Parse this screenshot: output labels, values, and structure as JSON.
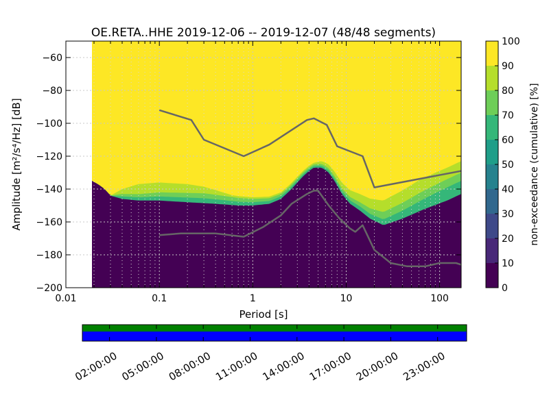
{
  "chart_data": {
    "type": "heatmap",
    "title": "OE.RETA..HHE   2019-12-06 -- 2019-12-07  (48/48 segments)",
    "xlabel": "Period [s]",
    "ylabel": "Amplitude [m²/s⁴/Hz] [dB]",
    "xscale": "log",
    "xlim": [
      0.01,
      170
    ],
    "ylim": [
      -200,
      -50
    ],
    "grid": true,
    "x_ticks": [
      {
        "value": 0.01,
        "label": "0.01"
      },
      {
        "value": 0.1,
        "label": "0.1"
      },
      {
        "value": 1,
        "label": "1"
      },
      {
        "value": 10,
        "label": "10"
      },
      {
        "value": 100,
        "label": "100"
      }
    ],
    "y_ticks": [
      {
        "value": -60,
        "label": "−60"
      },
      {
        "value": -80,
        "label": "−80"
      },
      {
        "value": -100,
        "label": "−100"
      },
      {
        "value": -120,
        "label": "−120"
      },
      {
        "value": -140,
        "label": "−140"
      },
      {
        "value": -160,
        "label": "−160"
      },
      {
        "value": -180,
        "label": "−180"
      },
      {
        "value": -200,
        "label": "−200"
      }
    ],
    "data_xmin": 0.019,
    "colorbar": {
      "label": "non-exceedance (cumulative) [%]",
      "range": [
        0,
        100
      ],
      "ticks": [
        {
          "value": 0,
          "label": "0"
        },
        {
          "value": 10,
          "label": "10"
        },
        {
          "value": 20,
          "label": "20"
        },
        {
          "value": 30,
          "label": "30"
        },
        {
          "value": 40,
          "label": "40"
        },
        {
          "value": 50,
          "label": "50"
        },
        {
          "value": 60,
          "label": "60"
        },
        {
          "value": 70,
          "label": "70"
        },
        {
          "value": 80,
          "label": "80"
        },
        {
          "value": 90,
          "label": "90"
        },
        {
          "value": 100,
          "label": "100"
        }
      ],
      "colors": [
        "#440154",
        "#482878",
        "#3e4989",
        "#31688e",
        "#26828e",
        "#1f9e89",
        "#35b779",
        "#6ece58",
        "#b5de2b",
        "#fde725"
      ]
    },
    "lower_boundary": [
      [
        0.019,
        -135
      ],
      [
        0.022,
        -137
      ],
      [
        0.026,
        -140
      ],
      [
        0.03,
        -144
      ],
      [
        0.04,
        -146
      ],
      [
        0.06,
        -147
      ],
      [
        0.1,
        -147
      ],
      [
        0.2,
        -148
      ],
      [
        0.4,
        -149
      ],
      [
        0.7,
        -150
      ],
      [
        1.0,
        -150
      ],
      [
        1.5,
        -149
      ],
      [
        2.0,
        -146
      ],
      [
        2.5,
        -141
      ],
      [
        3.0,
        -136
      ],
      [
        3.5,
        -132
      ],
      [
        4.0,
        -129
      ],
      [
        4.5,
        -127
      ],
      [
        5.5,
        -127
      ],
      [
        6.5,
        -130
      ],
      [
        7.5,
        -135
      ],
      [
        9.0,
        -143
      ],
      [
        11,
        -149
      ],
      [
        14,
        -153
      ],
      [
        18,
        -158
      ],
      [
        25,
        -162
      ],
      [
        40,
        -158
      ],
      [
        70,
        -152
      ],
      [
        120,
        -147
      ],
      [
        170,
        -143
      ]
    ],
    "transition_bands": [
      {
        "percent": 70,
        "offsets": [
          [
            0.019,
            0
          ],
          [
            0.03,
            0
          ],
          [
            0.04,
            1.5
          ],
          [
            0.1,
            2.5
          ],
          [
            0.3,
            3
          ],
          [
            1,
            2
          ],
          [
            2,
            1.5
          ],
          [
            4.5,
            1
          ],
          [
            8,
            1.5
          ],
          [
            14,
            2.5
          ],
          [
            25,
            3.5
          ],
          [
            60,
            6
          ],
          [
            120,
            8
          ],
          [
            170,
            8
          ]
        ]
      },
      {
        "percent": 80,
        "offsets": [
          [
            0.019,
            0
          ],
          [
            0.03,
            0
          ],
          [
            0.04,
            3
          ],
          [
            0.1,
            5
          ],
          [
            0.3,
            6
          ],
          [
            1,
            4
          ],
          [
            2,
            3
          ],
          [
            4.5,
            2
          ],
          [
            8,
            3
          ],
          [
            14,
            5
          ],
          [
            25,
            8
          ],
          [
            60,
            11
          ],
          [
            120,
            13
          ],
          [
            170,
            13
          ]
        ]
      },
      {
        "percent": 90,
        "offsets": [
          [
            0.019,
            0
          ],
          [
            0.03,
            0
          ],
          [
            0.04,
            6
          ],
          [
            0.06,
            10
          ],
          [
            0.1,
            11
          ],
          [
            0.2,
            11
          ],
          [
            0.3,
            10
          ],
          [
            0.6,
            6
          ],
          [
            1,
            5
          ],
          [
            2,
            4
          ],
          [
            4.5,
            3
          ],
          [
            8,
            6
          ],
          [
            14,
            10
          ],
          [
            25,
            15
          ],
          [
            60,
            19
          ],
          [
            120,
            20
          ],
          [
            170,
            20
          ]
        ]
      }
    ],
    "series": [
      {
        "values": [
          [
            0.1,
            -92
          ],
          [
            0.22,
            -98
          ],
          [
            0.3,
            -110
          ],
          [
            0.8,
            -120
          ],
          [
            1.5,
            -113
          ],
          [
            3.8,
            -98
          ],
          [
            4.5,
            -97
          ],
          [
            6.2,
            -101
          ],
          [
            8,
            -114
          ],
          [
            15,
            -120
          ],
          [
            20,
            -139
          ],
          [
            170,
            -129
          ]
        ]
      },
      {
        "values": [
          [
            0.1,
            -168
          ],
          [
            0.17,
            -167
          ],
          [
            0.4,
            -167
          ],
          [
            0.8,
            -169
          ],
          [
            1.3,
            -163
          ],
          [
            2.0,
            -156
          ],
          [
            2.6,
            -149
          ],
          [
            3.8,
            -143
          ],
          [
            4.5,
            -141
          ],
          [
            5.0,
            -141
          ],
          [
            6.5,
            -150
          ],
          [
            8.5,
            -158
          ],
          [
            11,
            -164
          ],
          [
            12.5,
            -166
          ],
          [
            15,
            -162
          ],
          [
            20,
            -177
          ],
          [
            30,
            -185
          ],
          [
            45,
            -187
          ],
          [
            70,
            -187
          ],
          [
            100,
            -185
          ],
          [
            150,
            -185
          ],
          [
            170,
            -186
          ]
        ]
      }
    ],
    "timeline": {
      "ticks": [
        "02:00:00",
        "05:00:00",
        "08:00:00",
        "11:00:00",
        "14:00:00",
        "17:00:00",
        "20:00:00",
        "23:00:00"
      ],
      "top_color": "#008000",
      "bottom_color": "#0000ff"
    }
  }
}
